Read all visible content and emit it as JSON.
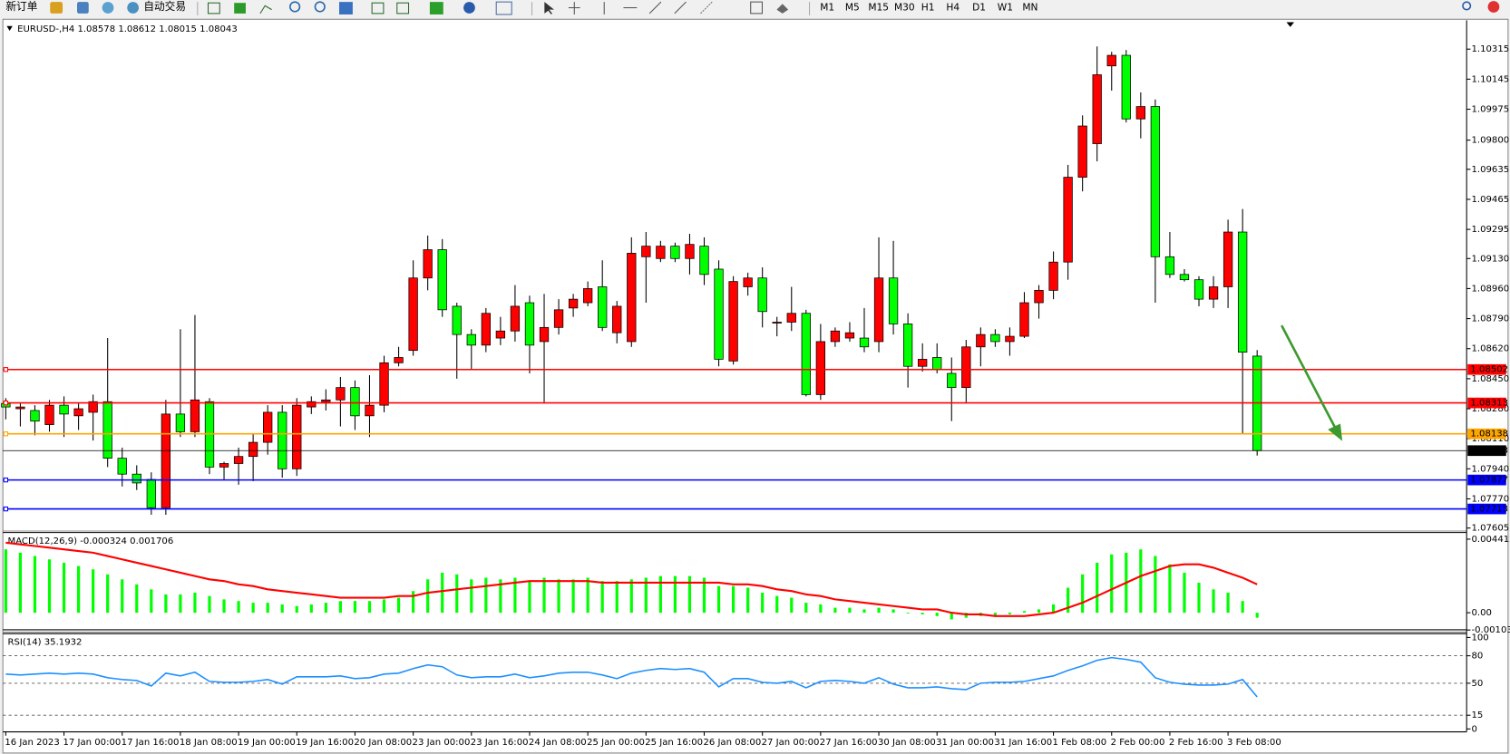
{
  "toolbar": {
    "new_order": "新订单",
    "auto_trading": "自动交易",
    "timeframes": [
      "M1",
      "M5",
      "M15",
      "M30",
      "H1",
      "H4",
      "D1",
      "W1",
      "MN"
    ]
  },
  "chart_data": [
    {
      "type": "candlestick",
      "title": "EURUSD-,H4 1.08578 1.08612 1.08015 1.08043",
      "categories": [
        "16 Jan 2023",
        null,
        null,
        null,
        "17 Jan 00:00",
        null,
        null,
        null,
        "17 Jan 16:00",
        null,
        null,
        null,
        "18 Jan 08:00",
        null,
        null,
        null,
        "19 Jan 00:00",
        null,
        null,
        null,
        "19 Jan 16:00",
        null,
        null,
        null,
        "20 Jan 08:00",
        null,
        null,
        null,
        "23 Jan 00:00",
        null,
        null,
        null,
        "23 Jan 16:00",
        null,
        null,
        null,
        "24 Jan 08:00",
        null,
        null,
        null,
        "25 Jan 00:00",
        null,
        null,
        null,
        "25 Jan 16:00",
        null,
        null,
        null,
        "26 Jan 08:00",
        null,
        null,
        null,
        "27 Jan 00:00",
        null,
        null,
        null,
        "27 Jan 16:00",
        null,
        null,
        null,
        "30 Jan 08:00",
        null,
        null,
        null,
        "31 Jan 00:00",
        null,
        null,
        null,
        "31 Jan 16:00",
        null,
        null,
        null,
        "1 Feb 08:00",
        null,
        null,
        null,
        "2 Feb 00:00",
        null,
        null,
        null,
        "2 Feb 16:00",
        null,
        null,
        null,
        "3 Feb 08:00",
        null,
        null
      ],
      "open": [
        1.0831,
        1.0828,
        1.0827,
        1.0819,
        1.083,
        1.0824,
        1.0826,
        1.0832,
        1.08,
        1.0791,
        1.0788,
        1.0772,
        1.0825,
        1.0815,
        1.0832,
        1.0795,
        1.0797,
        1.0801,
        1.0809,
        1.0826,
        1.0794,
        1.0829,
        1.0832,
        1.0833,
        1.084,
        1.0824,
        1.083,
        1.0854,
        1.0861,
        1.0902,
        1.0918,
        1.0886,
        1.087,
        1.0864,
        1.0868,
        1.0872,
        1.0888,
        1.0866,
        1.0874,
        1.0885,
        1.0888,
        1.0897,
        1.0871,
        1.0866,
        1.0914,
        1.0913,
        1.092,
        1.0913,
        1.092,
        1.0907,
        1.0855,
        1.0897,
        1.0902,
        1.0877,
        1.0877,
        1.0882,
        1.0836,
        1.0866,
        1.0868,
        1.0868,
        1.0866,
        1.0902,
        1.0876,
        1.0852,
        1.0857,
        1.0848,
        1.084,
        1.0863,
        1.087,
        1.0866,
        1.0869,
        1.0888,
        1.0895,
        1.0911,
        1.0959,
        1.0978,
        1.1022,
        1.1028,
        1.0992,
        1.0999,
        1.0914,
        1.0904,
        1.0901,
        1.089,
        1.0897,
        1.0928,
        1.08578
      ],
      "high": [
        1.0834,
        1.0831,
        1.083,
        1.0833,
        1.0835,
        1.0831,
        1.0836,
        1.0868,
        1.0806,
        1.0796,
        1.0792,
        1.0833,
        1.0873,
        1.0881,
        1.0834,
        1.0798,
        1.0806,
        1.0814,
        1.083,
        1.083,
        1.0834,
        1.0835,
        1.0839,
        1.0846,
        1.0844,
        1.0847,
        1.0858,
        1.0863,
        1.0912,
        1.0926,
        1.0924,
        1.0888,
        1.0873,
        1.0885,
        1.088,
        1.0898,
        1.0892,
        1.0893,
        1.089,
        1.0893,
        1.09,
        1.0912,
        1.0889,
        1.0925,
        1.0928,
        1.0923,
        1.0922,
        1.0927,
        1.0925,
        1.0912,
        1.0903,
        1.0905,
        1.0908,
        1.088,
        1.0897,
        1.0884,
        1.0876,
        1.0874,
        1.0877,
        1.0885,
        1.0925,
        1.0923,
        1.0882,
        1.0865,
        1.0865,
        1.0857,
        1.0867,
        1.0874,
        1.0873,
        1.0874,
        1.0894,
        1.0898,
        1.0917,
        1.0966,
        1.0994,
        1.1033,
        1.103,
        1.1031,
        1.1007,
        1.1003,
        1.0928,
        1.0907,
        1.0903,
        1.0903,
        1.0935,
        1.0941,
        1.08612
      ],
      "low": [
        1.0822,
        1.0818,
        1.0813,
        1.0815,
        1.0812,
        1.0816,
        1.081,
        1.0795,
        1.0784,
        1.0782,
        1.0768,
        1.0768,
        1.0812,
        1.0812,
        1.0791,
        1.0788,
        1.0785,
        1.0787,
        1.0802,
        1.0789,
        1.079,
        1.0825,
        1.0827,
        1.0818,
        1.0816,
        1.0812,
        1.0826,
        1.0852,
        1.0858,
        1.0895,
        1.088,
        1.0845,
        1.085,
        1.086,
        1.0864,
        1.0866,
        1.0848,
        1.0831,
        1.087,
        1.088,
        1.0886,
        1.0872,
        1.0865,
        1.0863,
        1.0888,
        1.0911,
        1.0911,
        1.0904,
        1.0898,
        1.0852,
        1.0853,
        1.0892,
        1.0874,
        1.0869,
        1.0872,
        1.0835,
        1.0833,
        1.0863,
        1.0866,
        1.086,
        1.086,
        1.087,
        1.084,
        1.0849,
        1.0848,
        1.0821,
        1.0831,
        1.0852,
        1.0863,
        1.0858,
        1.0868,
        1.0879,
        1.089,
        1.0901,
        1.0951,
        1.0968,
        1.1008,
        1.099,
        1.0981,
        1.0888,
        1.0902,
        1.09,
        1.0886,
        1.0885,
        1.0885,
        1.0814,
        1.08015
      ],
      "close": [
        1.0829,
        1.0829,
        1.0821,
        1.083,
        1.0825,
        1.0828,
        1.0832,
        1.08,
        1.0791,
        1.0786,
        1.0772,
        1.0825,
        1.0815,
        1.0833,
        1.0795,
        1.0797,
        1.0801,
        1.0809,
        1.0826,
        1.0794,
        1.083,
        1.0832,
        1.0833,
        1.084,
        1.0824,
        1.083,
        1.0854,
        1.0857,
        1.0902,
        1.0918,
        1.0884,
        1.087,
        1.0864,
        1.0882,
        1.0872,
        1.0886,
        1.0864,
        1.0874,
        1.0884,
        1.089,
        1.0896,
        1.0874,
        1.0886,
        1.0916,
        1.092,
        1.092,
        1.0913,
        1.0921,
        1.0904,
        1.0856,
        1.09,
        1.0902,
        1.0883,
        1.0877,
        1.0882,
        1.0836,
        1.0866,
        1.0872,
        1.0871,
        1.0863,
        1.0902,
        1.0876,
        1.0852,
        1.0856,
        1.085,
        1.084,
        1.0863,
        1.087,
        1.0866,
        1.0869,
        1.0888,
        1.0895,
        1.0911,
        1.0959,
        1.0988,
        1.1017,
        1.1028,
        1.0992,
        1.0999,
        1.0914,
        1.0904,
        1.0901,
        1.089,
        1.0897,
        1.0928,
        1.086,
        1.08043
      ],
      "up_color": "#ff0000",
      "down_color": "#00ff00",
      "ylim": [
        1.07596,
        1.10473
      ],
      "yticks": [
        1.10315,
        1.10145,
        1.09975,
        {
          "value": 1.098,
          "label": "1.09800"
        },
        1.09635,
        1.09465,
        1.09295,
        {
          "value": 1.0913,
          "label": "1.09130"
        },
        {
          "value": 1.0896,
          "label": "1.08960"
        },
        {
          "value": 1.0879,
          "label": "1.08790"
        },
        {
          "value": 1.0862,
          "label": "1.08620"
        },
        {
          "value": 1.0845,
          "label": "1.08450"
        },
        {
          "value": 1.0828,
          "label": "1.08280"
        },
        {
          "value": 1.0811,
          "label": "1.08110"
        },
        {
          "value": 1.0794,
          "label": "1.07940"
        },
        {
          "value": 1.0777,
          "label": "1.07770"
        },
        1.07605
      ],
      "hlines": [
        {
          "value": 1.08502,
          "color": "#ff0000"
        },
        {
          "value": 1.08313,
          "color": "#ff0000"
        },
        {
          "value": 1.08138,
          "color": "#ffa500"
        },
        {
          "value": 1.07877,
          "color": "#0000ff"
        },
        {
          "value": 1.07713,
          "color": "#0000ff"
        }
      ],
      "last_price": 1.08043,
      "last_price_color": "#000000"
    },
    {
      "type": "macd",
      "title": "MACD(12,26,9) -0.000324 0.001706",
      "histogram": [
        0.0038,
        0.0036,
        0.0034,
        0.0032,
        0.003,
        0.0028,
        0.0026,
        0.0023,
        0.002,
        0.0017,
        0.0014,
        0.0011,
        0.0011,
        0.0012,
        0.001,
        0.0008,
        0.0007,
        0.0006,
        0.0006,
        0.0005,
        0.0004,
        0.0005,
        0.0006,
        0.0007,
        0.0007,
        0.0007,
        0.0008,
        0.0009,
        0.0013,
        0.002,
        0.0024,
        0.0023,
        0.002,
        0.0021,
        0.002,
        0.0021,
        0.0019,
        0.0021,
        0.002,
        0.002,
        0.0021,
        0.0019,
        0.0019,
        0.002,
        0.0021,
        0.0022,
        0.0022,
        0.0022,
        0.0021,
        0.0016,
        0.0016,
        0.0015,
        0.0012,
        0.001,
        0.0009,
        0.0006,
        0.0005,
        0.0003,
        0.0003,
        0.0002,
        0.0003,
        0.0002,
        0.0,
        -0.0001,
        -0.0002,
        -0.0004,
        -0.0003,
        -0.0002,
        -0.0002,
        -0.0001,
        0.0001,
        0.0002,
        0.0005,
        0.0015,
        0.0023,
        0.003,
        0.0035,
        0.0036,
        0.0038,
        0.0034,
        0.0029,
        0.0024,
        0.0018,
        0.0014,
        0.0012,
        0.0007,
        -0.0003
      ],
      "signal": [
        0.0042,
        0.0041,
        0.004,
        0.0039,
        0.0038,
        0.0037,
        0.0036,
        0.0034,
        0.0032,
        0.003,
        0.0028,
        0.0026,
        0.0024,
        0.0022,
        0.002,
        0.0019,
        0.0017,
        0.0016,
        0.0014,
        0.0013,
        0.0012,
        0.0011,
        0.001,
        0.0009,
        0.0009,
        0.0009,
        0.0009,
        0.001,
        0.001,
        0.0012,
        0.0013,
        0.0014,
        0.0015,
        0.0016,
        0.0017,
        0.0018,
        0.0019,
        0.0019,
        0.0019,
        0.0019,
        0.0019,
        0.0018,
        0.0018,
        0.0018,
        0.0018,
        0.0018,
        0.0018,
        0.0018,
        0.0018,
        0.0018,
        0.0017,
        0.0017,
        0.0016,
        0.0014,
        0.0013,
        0.0011,
        0.001,
        0.0008,
        0.0007,
        0.0006,
        0.0005,
        0.0004,
        0.0003,
        0.0002,
        0.0002,
        0.0,
        -0.0001,
        -0.0001,
        -0.0002,
        -0.0002,
        -0.0002,
        -0.0001,
        0.0,
        0.0003,
        0.0006,
        0.001,
        0.0014,
        0.0018,
        0.0022,
        0.0025,
        0.0028,
        0.0029,
        0.0029,
        0.0027,
        0.0024,
        0.0021,
        0.0017
      ],
      "histogram_color": "#00ff00",
      "signal_color": "#ff0000",
      "ylim": [
        -0.00108,
        0.00481
      ],
      "yticks": [
        0.004412,
        {
          "value": 0,
          "label": "0.00"
        },
        -0.001036
      ]
    },
    {
      "type": "line",
      "title": "RSI(14) 35.1932",
      "values": [
        60,
        59,
        60,
        61,
        60,
        61,
        60,
        56,
        54,
        53,
        47,
        61,
        58,
        62,
        52,
        51,
        51,
        52,
        54,
        49,
        57,
        57,
        57,
        58,
        55,
        56,
        60,
        61,
        66,
        70,
        68,
        59,
        56,
        57,
        57,
        60,
        56,
        58,
        61,
        62,
        62,
        59,
        55,
        61,
        64,
        66,
        65,
        66,
        62,
        46,
        55,
        55,
        51,
        50,
        52,
        45,
        52,
        53,
        52,
        50,
        56,
        49,
        45,
        45,
        46,
        44,
        43,
        50,
        51,
        51,
        52,
        55,
        58,
        64,
        69,
        75,
        78,
        76,
        73,
        56,
        51,
        49,
        48,
        48,
        49,
        54,
        35
      ],
      "color": "#1e90ff",
      "ylim": [
        0,
        100
      ],
      "yticks": [
        100,
        80,
        50,
        15,
        0
      ]
    }
  ]
}
